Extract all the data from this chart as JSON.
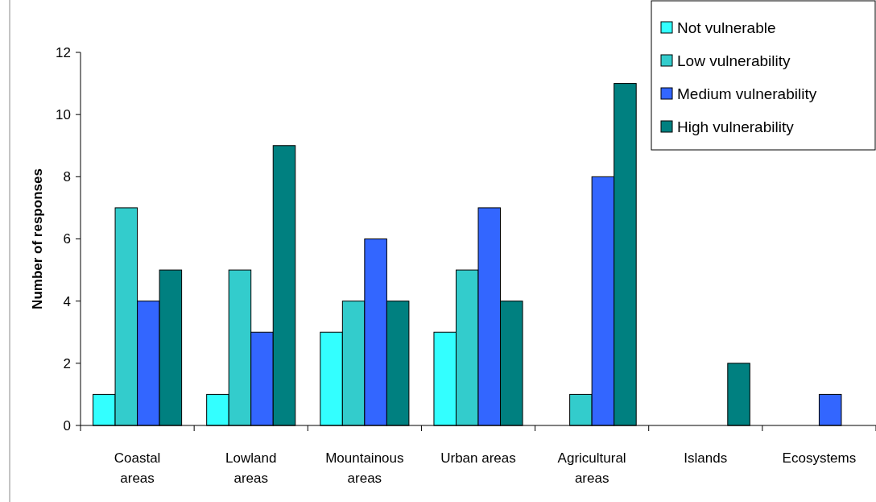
{
  "chart_data": {
    "type": "bar",
    "ylabel": "Number of responses",
    "categories": [
      "Coastal areas",
      "Lowland areas",
      "Mountainous areas",
      "Urban areas",
      "Agricultural areas",
      "Islands",
      "Ecosystems"
    ],
    "series": [
      {
        "name": "Not vulnerable",
        "color": "#33ffff",
        "values": [
          1,
          1,
          3,
          3,
          0,
          0,
          0
        ]
      },
      {
        "name": "Low vulnerability",
        "color": "#33cccc",
        "values": [
          7,
          5,
          4,
          5,
          1,
          0,
          0
        ]
      },
      {
        "name": "Medium vulnerability",
        "color": "#3366ff",
        "values": [
          4,
          3,
          6,
          7,
          8,
          0,
          1
        ]
      },
      {
        "name": "High vulnerability",
        "color": "#008080",
        "values": [
          5,
          9,
          4,
          4,
          11,
          2,
          0
        ]
      }
    ],
    "ylim": [
      0,
      12
    ],
    "yticks": [
      0,
      2,
      4,
      6,
      8,
      10,
      12
    ],
    "grid": false,
    "legend": "top right"
  }
}
